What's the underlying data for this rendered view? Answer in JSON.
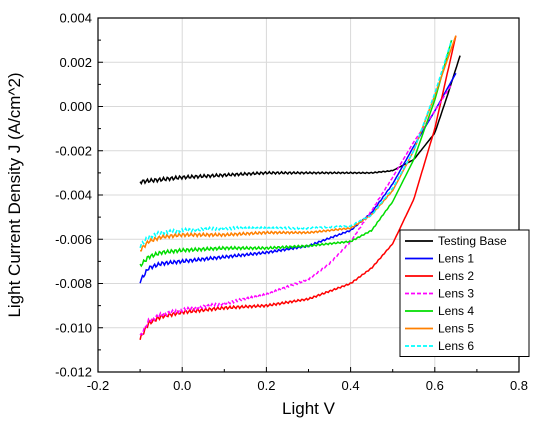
{
  "chart_data": {
    "type": "line",
    "xlabel": "Light V",
    "ylabel": "Light Current Density J (A/cm^2)",
    "xlim": [
      -0.2,
      0.8
    ],
    "ylim": [
      -0.012,
      0.004
    ],
    "xticks": [
      -0.2,
      0.0,
      0.2,
      0.4,
      0.6,
      0.8
    ],
    "xtick_labels": [
      "-0.2",
      "0.0",
      "0.2",
      "0.4",
      "0.6",
      "0.8"
    ],
    "yticks": [
      -0.012,
      -0.01,
      -0.008,
      -0.006,
      -0.004,
      -0.002,
      0.0,
      0.002,
      0.004
    ],
    "ytick_labels": [
      "-0.012",
      "-0.010",
      "-0.008",
      "-0.006",
      "-0.004",
      "-0.002",
      "0.000",
      "0.002",
      "0.004"
    ],
    "grid": true,
    "legend_position": "bottom-right",
    "series": [
      {
        "name": "Testing Base",
        "color": "#000000",
        "dash": "solid",
        "points": [
          [
            -0.1,
            -0.0034
          ],
          [
            0.0,
            -0.0032
          ],
          [
            0.1,
            -0.0031
          ],
          [
            0.2,
            -0.003
          ],
          [
            0.3,
            -0.003
          ],
          [
            0.4,
            -0.003
          ],
          [
            0.45,
            -0.003
          ],
          [
            0.5,
            -0.0029
          ],
          [
            0.55,
            -0.0024
          ],
          [
            0.6,
            -0.0012
          ],
          [
            0.63,
            0.0005
          ],
          [
            0.66,
            0.0023
          ]
        ]
      },
      {
        "name": "Lens 1",
        "color": "#0000ff",
        "dash": "solid",
        "points": [
          [
            -0.1,
            -0.0079
          ],
          [
            -0.08,
            -0.0073
          ],
          [
            -0.05,
            -0.0071
          ],
          [
            0.0,
            -0.007
          ],
          [
            0.1,
            -0.0068
          ],
          [
            0.2,
            -0.0066
          ],
          [
            0.3,
            -0.0063
          ],
          [
            0.4,
            -0.0056
          ],
          [
            0.45,
            -0.0048
          ],
          [
            0.5,
            -0.0035
          ],
          [
            0.55,
            -0.0018
          ],
          [
            0.6,
            -0.0002
          ],
          [
            0.65,
            0.0015
          ]
        ]
      },
      {
        "name": "Lens 2",
        "color": "#ff0000",
        "dash": "solid",
        "points": [
          [
            -0.1,
            -0.0105
          ],
          [
            -0.08,
            -0.0098
          ],
          [
            -0.05,
            -0.0095
          ],
          [
            0.0,
            -0.0093
          ],
          [
            0.1,
            -0.0091
          ],
          [
            0.2,
            -0.009
          ],
          [
            0.3,
            -0.0087
          ],
          [
            0.4,
            -0.008
          ],
          [
            0.45,
            -0.0073
          ],
          [
            0.5,
            -0.0062
          ],
          [
            0.55,
            -0.0042
          ],
          [
            0.6,
            -0.001
          ],
          [
            0.65,
            0.0032
          ]
        ]
      },
      {
        "name": "Lens 3",
        "color": "#ff00ff",
        "dash": "dashed",
        "points": [
          [
            -0.1,
            -0.0104
          ],
          [
            -0.08,
            -0.0097
          ],
          [
            -0.05,
            -0.0094
          ],
          [
            0.0,
            -0.0092
          ],
          [
            0.1,
            -0.0089
          ],
          [
            0.2,
            -0.0085
          ],
          [
            0.3,
            -0.0078
          ],
          [
            0.35,
            -0.0071
          ],
          [
            0.4,
            -0.0061
          ],
          [
            0.45,
            -0.0047
          ],
          [
            0.5,
            -0.0032
          ],
          [
            0.55,
            -0.0016
          ],
          [
            0.6,
            -0.0002
          ],
          [
            0.64,
            0.001
          ]
        ]
      },
      {
        "name": "Lens 4",
        "color": "#00dd00",
        "dash": "solid",
        "points": [
          [
            -0.1,
            -0.0072
          ],
          [
            -0.08,
            -0.0068
          ],
          [
            -0.05,
            -0.0066
          ],
          [
            0.0,
            -0.0065
          ],
          [
            0.1,
            -0.0064
          ],
          [
            0.2,
            -0.0064
          ],
          [
            0.3,
            -0.0063
          ],
          [
            0.4,
            -0.0061
          ],
          [
            0.45,
            -0.0056
          ],
          [
            0.5,
            -0.0043
          ],
          [
            0.55,
            -0.0024
          ],
          [
            0.6,
            0.0003
          ],
          [
            0.64,
            0.003
          ]
        ]
      },
      {
        "name": "Lens 5",
        "color": "#ff8000",
        "dash": "solid",
        "points": [
          [
            -0.1,
            -0.0065
          ],
          [
            -0.08,
            -0.0061
          ],
          [
            -0.05,
            -0.0059
          ],
          [
            0.0,
            -0.0058
          ],
          [
            0.1,
            -0.0058
          ],
          [
            0.2,
            -0.0057
          ],
          [
            0.3,
            -0.0057
          ],
          [
            0.4,
            -0.0055
          ],
          [
            0.45,
            -0.0049
          ],
          [
            0.5,
            -0.0038
          ],
          [
            0.55,
            -0.002
          ],
          [
            0.6,
            0.0005
          ],
          [
            0.65,
            0.0032
          ]
        ]
      },
      {
        "name": "Lens 6",
        "color": "#00ffff",
        "dash": "dashed",
        "points": [
          [
            -0.1,
            -0.0063
          ],
          [
            -0.08,
            -0.0059
          ],
          [
            -0.05,
            -0.0057
          ],
          [
            0.0,
            -0.0056
          ],
          [
            0.1,
            -0.0055
          ],
          [
            0.2,
            -0.0055
          ],
          [
            0.3,
            -0.0055
          ],
          [
            0.4,
            -0.0054
          ],
          [
            0.45,
            -0.0049
          ],
          [
            0.5,
            -0.0037
          ],
          [
            0.55,
            -0.002
          ],
          [
            0.6,
            0.0006
          ],
          [
            0.64,
            0.003
          ]
        ]
      }
    ]
  }
}
